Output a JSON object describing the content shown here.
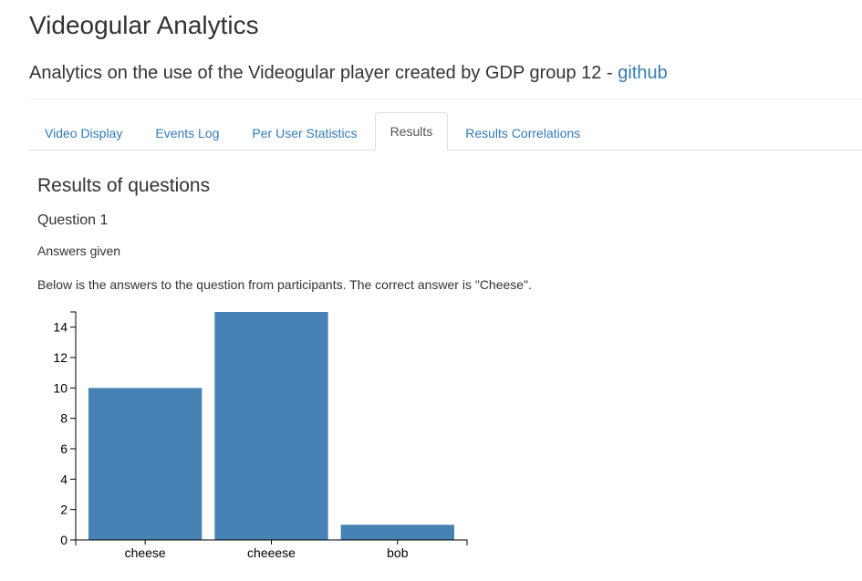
{
  "header": {
    "title": "Videogular Analytics",
    "subtitle_text": "Analytics on the use of the Videogular player created by GDP group 12 - ",
    "subtitle_link": "github"
  },
  "tabs": [
    {
      "label": "Video Display",
      "active": false
    },
    {
      "label": "Events Log",
      "active": false
    },
    {
      "label": "Per User Statistics",
      "active": false
    },
    {
      "label": "Results",
      "active": true
    },
    {
      "label": "Results Correlations",
      "active": false
    }
  ],
  "main": {
    "section_title": "Results of questions",
    "question_title": "Question 1",
    "answers_label": "Answers given",
    "description": "Below is the answers to the question from participants. The correct answer is \"Cheese\"."
  },
  "colors": {
    "bar": "#4682b4",
    "link": "#337ab7"
  },
  "chart_data": {
    "type": "bar",
    "categories": [
      "cheese",
      "cheeese",
      "bob"
    ],
    "values": [
      10,
      15,
      1
    ],
    "title": "",
    "xlabel": "",
    "ylabel": "",
    "ylim": [
      0,
      15
    ],
    "yticks": [
      0,
      2,
      4,
      6,
      8,
      10,
      12,
      14
    ],
    "grid": false,
    "legend": "none"
  }
}
